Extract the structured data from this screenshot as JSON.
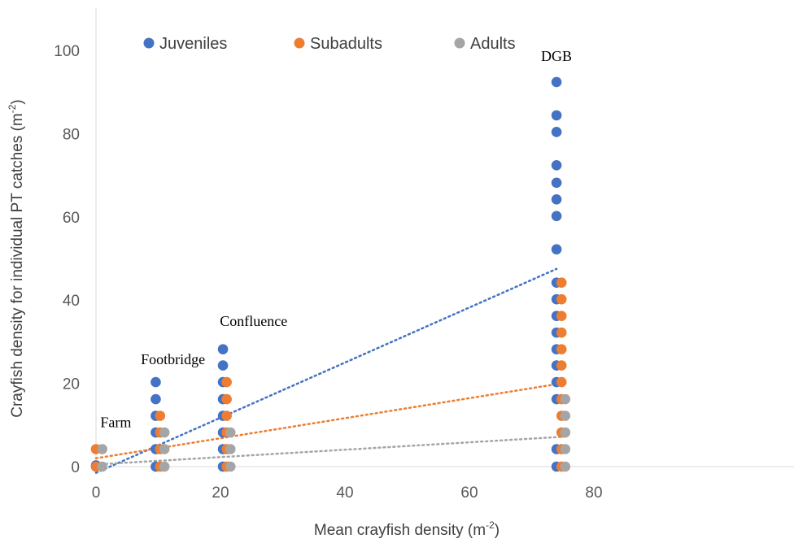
{
  "chart_data": {
    "type": "scatter",
    "xlabel": "Mean crayfish density (m",
    "xlabel_sup": "-2",
    "xlabel_end": ")",
    "ylabel": "Crayfish density for individual PT catches (m",
    "ylabel_sup": "-2",
    "ylabel_end": ")",
    "xlim": [
      0,
      90
    ],
    "ylim": [
      0,
      105
    ],
    "xticks": [
      0,
      20,
      40,
      60,
      80
    ],
    "yticks": [
      0,
      20,
      40,
      60,
      80,
      100
    ],
    "grid": false,
    "legend_position": "top-left",
    "series": [
      {
        "name": "Juveniles",
        "color": "#4472C4",
        "x": [
          0,
          0,
          9.6,
          9.6,
          9.6,
          9.6,
          9.6,
          9.6,
          20.4,
          20.4,
          20.4,
          20.4,
          20.4,
          20.4,
          20.4,
          20.4,
          74,
          74,
          74,
          74,
          74,
          74,
          74,
          74,
          74,
          74,
          74,
          74,
          74,
          74,
          74,
          74,
          74,
          74
        ],
        "y": [
          0,
          0.3,
          0,
          4.2,
          8.2,
          12.2,
          16.2,
          20.3,
          0,
          4.2,
          8.2,
          12.2,
          16.2,
          20.3,
          24.3,
          28.2,
          16.2,
          20.3,
          24.3,
          28.2,
          32.2,
          36.2,
          40.2,
          44.2,
          52.2,
          60.2,
          64.2,
          68.2,
          72.4,
          80.4,
          84.4,
          92.4,
          0,
          4.2
        ],
        "trend": {
          "x0": 0,
          "y0": -1.5,
          "x1": 74,
          "y1": 47.5
        }
      },
      {
        "name": "Subadults",
        "color": "#ED7D31",
        "x": [
          0,
          0,
          10.3,
          10.3,
          10.3,
          10.3,
          21,
          21,
          21,
          21,
          21,
          21,
          74.8,
          74.8,
          74.8,
          74.8,
          74.8,
          74.8,
          74.8,
          74.8,
          74.8,
          74.8,
          74.8,
          74.8
        ],
        "y": [
          0,
          4.2,
          0,
          4.2,
          8.2,
          12.2,
          0,
          4.2,
          8.2,
          12.2,
          16.2,
          20.3,
          0,
          4.2,
          8.2,
          12.2,
          16.2,
          20.3,
          24.3,
          28.2,
          32.2,
          40.2,
          44.2,
          36.2
        ],
        "trend": {
          "x0": 0,
          "y0": 2,
          "x1": 74.8,
          "y1": 20
        }
      },
      {
        "name": "Adults",
        "color": "#A5A5A5",
        "x": [
          1,
          1,
          11,
          11,
          11,
          21.6,
          21.6,
          21.6,
          75.4,
          75.4,
          75.4,
          75.4,
          75.4
        ],
        "y": [
          0,
          4.2,
          0,
          4.2,
          8.2,
          0,
          4.2,
          8.2,
          0,
          4.2,
          8.2,
          12.2,
          16.2
        ],
        "trend": {
          "x0": 0,
          "y0": 0.5,
          "x1": 75.4,
          "y1": 7.2
        }
      }
    ],
    "annotations": [
      {
        "text": "Farm",
        "x": 0.7,
        "y": 9.5
      },
      {
        "text": "Footbridge",
        "x": 7.2,
        "y": 24.6
      },
      {
        "text": "Confluence",
        "x": 19.9,
        "y": 33.8
      },
      {
        "text": "DGB",
        "x": 71.5,
        "y": 97.5
      }
    ]
  }
}
